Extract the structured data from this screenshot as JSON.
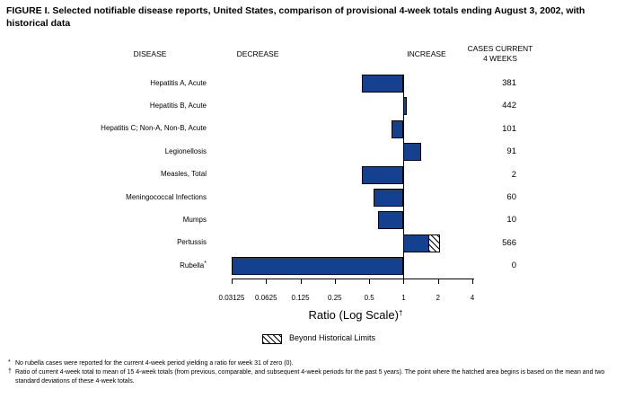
{
  "title": "FIGURE I. Selected notifiable disease reports, United States, comparison of provisional 4-week totals ending August 3, 2002, with historical data",
  "column_headers": {
    "disease": "DISEASE",
    "decrease": "DECREASE",
    "increase": "INCREASE",
    "cases_line1": "CASES CURRENT",
    "cases_line2": "4 WEEKS"
  },
  "chart_data": {
    "type": "bar",
    "orientation": "horizontal",
    "scale": "log2",
    "baseline_ratio": 1,
    "axis_label": "Ratio (Log Scale)",
    "axis_label_superscript": "†",
    "xlim": [
      0.03125,
      4
    ],
    "x_tick_values": [
      0.03125,
      0.0625,
      0.125,
      0.25,
      0.5,
      1,
      2,
      4
    ],
    "x_tick_labels": [
      "0.03125",
      "0.0625",
      "0.125",
      "0.25",
      "0.5",
      "1",
      "2",
      "4"
    ],
    "legend": {
      "swatch": "hatched",
      "label": "Beyond Historical Limits"
    },
    "rows": [
      {
        "disease": "Hepatitis A, Acute",
        "ratio": 0.43,
        "cases_current_4_weeks": 381
      },
      {
        "disease": "Hepatitis B, Acute",
        "ratio": 1.07,
        "cases_current_4_weeks": 442
      },
      {
        "disease": "Hepatitis C; Non-A, Non-B, Acute",
        "ratio": 0.78,
        "cases_current_4_weeks": 101
      },
      {
        "disease": "Legionellosis",
        "ratio": 1.43,
        "cases_current_4_weeks": 91
      },
      {
        "disease": "Measles, Total",
        "ratio": 0.43,
        "cases_current_4_weeks": 2
      },
      {
        "disease": "Meningococcal Infections",
        "ratio": 0.55,
        "cases_current_4_weeks": 60
      },
      {
        "disease": "Mumps",
        "ratio": 0.6,
        "cases_current_4_weeks": 10
      },
      {
        "disease": "Pertussis",
        "ratio": 2.08,
        "cases_current_4_weeks": 566,
        "beyond_historical_limit_from": 1.68
      },
      {
        "disease": "Rubella",
        "marker": "*",
        "ratio": 0,
        "cases_current_4_weeks": 0
      }
    ]
  },
  "footnotes": [
    {
      "marker": "*",
      "text": "No rubella cases were reported for the current 4-week period yielding a ratio for week 31 of zero (0)."
    },
    {
      "marker": "†",
      "text": "Ratio of current 4-week total to mean of 15 4-week totals (from previous, comparable, and subsequent 4-week periods for the past 5 years). The point where the hatched area begins is based on the mean and two standard deviations of these 4-week totals."
    }
  ],
  "colors": {
    "bar_fill": "#14418F",
    "bar_border": "#000000",
    "background": "#FFFFFF",
    "text": "#000000"
  }
}
